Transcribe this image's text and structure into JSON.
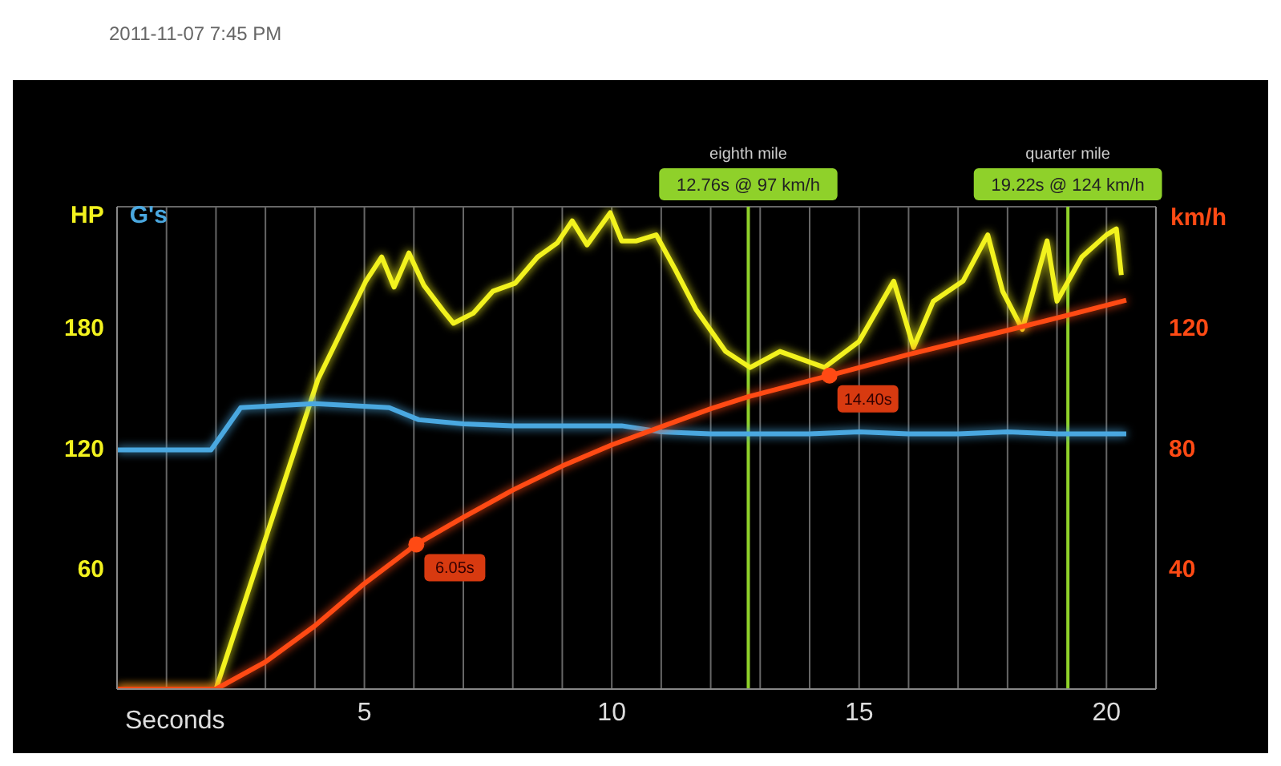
{
  "chart_data": {
    "type": "line",
    "subtitle": "2011-11-07 7:45 PM",
    "xlabel": "Seconds",
    "y2label": "km/h",
    "xlim": [
      0,
      21
    ],
    "xticks": [
      {
        "value": 0,
        "label": null
      },
      {
        "value": 1,
        "label": null
      },
      {
        "value": 2,
        "label": null
      },
      {
        "value": 3,
        "label": null
      },
      {
        "value": 4,
        "label": null
      },
      5,
      {
        "value": 6,
        "label": null
      },
      {
        "value": 7,
        "label": null
      },
      {
        "value": 8,
        "label": null
      },
      {
        "value": 9,
        "label": null
      },
      10,
      {
        "value": 11,
        "label": null
      },
      {
        "value": 12,
        "label": null
      },
      {
        "value": 13,
        "label": null
      },
      {
        "value": 14,
        "label": null
      },
      15,
      {
        "value": 16,
        "label": null
      },
      {
        "value": 17,
        "label": null
      },
      {
        "value": 18,
        "label": null
      },
      {
        "value": 19,
        "label": null
      },
      20
    ],
    "ylim": [
      0,
      240
    ],
    "yticks": [
      60,
      120,
      180
    ],
    "y2lim": [
      0,
      160
    ],
    "y2ticks": [
      40,
      80,
      120
    ],
    "grid": true,
    "legend": "top left",
    "marker": "none",
    "line_style": "solid",
    "series": [
      {
        "name": "HP",
        "color": "#f2f21e",
        "x": [
          0,
          2,
          4.06,
          5.03,
          5.35,
          5.6,
          5.9,
          6.2,
          6.6,
          6.8,
          7.2,
          7.6,
          8.05,
          8.5,
          8.9,
          9.2,
          9.5,
          9.97,
          10.2,
          10.5,
          10.9,
          11.3,
          11.7,
          12.3,
          12.8,
          13.4,
          14.3,
          15,
          15.7,
          16.1,
          16.5,
          17.1,
          17.6,
          17.9,
          18.3,
          18.8,
          19,
          19.5,
          20,
          20.2,
          20.3
        ],
        "values": [
          0,
          0,
          154,
          203,
          215,
          200,
          217,
          201,
          188,
          182,
          187,
          198,
          202,
          215,
          222,
          233,
          221,
          237,
          223,
          223,
          226,
          208,
          189,
          168,
          160,
          168,
          160,
          173,
          203,
          170,
          193,
          203,
          226,
          198,
          179,
          223,
          193,
          215,
          226,
          229,
          206
        ]
      },
      {
        "name": "G's",
        "color": "#4aa8e0",
        "x": [
          0,
          1.9,
          2.5,
          4,
          5.5,
          6.1,
          7,
          8,
          9,
          10.2,
          11,
          12,
          13,
          14,
          15,
          16,
          17,
          18,
          19,
          20,
          20.4
        ],
        "values": [
          119,
          119,
          140,
          142,
          140,
          134,
          132,
          131,
          131,
          131,
          128,
          127,
          127,
          127,
          128,
          127,
          127,
          128,
          127,
          127,
          127
        ]
      },
      {
        "color": "#ff4a14",
        "axis": "y2",
        "x": [
          0,
          2,
          3,
          4,
          5,
          6.05,
          7,
          8,
          9,
          10,
          11,
          12,
          12.76,
          14.4,
          16,
          18,
          19.22,
          20.4
        ],
        "values": [
          0,
          0,
          9,
          21,
          35,
          48,
          57,
          66,
          74,
          81,
          87,
          93,
          97,
          104,
          111,
          119,
          124,
          129
        ]
      }
    ],
    "ref_lines": [
      {
        "axis": "x",
        "value": 12.76,
        "label": "12.76s @ 97 km/h",
        "color": "#8fd12a"
      },
      {
        "axis": "x",
        "value": 19.22,
        "label": "19.22s @ 124 km/h",
        "color": "#8fd12a"
      }
    ],
    "annotations": [
      "eighth mile",
      "quarter mile",
      "6.05s",
      "14.40s"
    ]
  }
}
